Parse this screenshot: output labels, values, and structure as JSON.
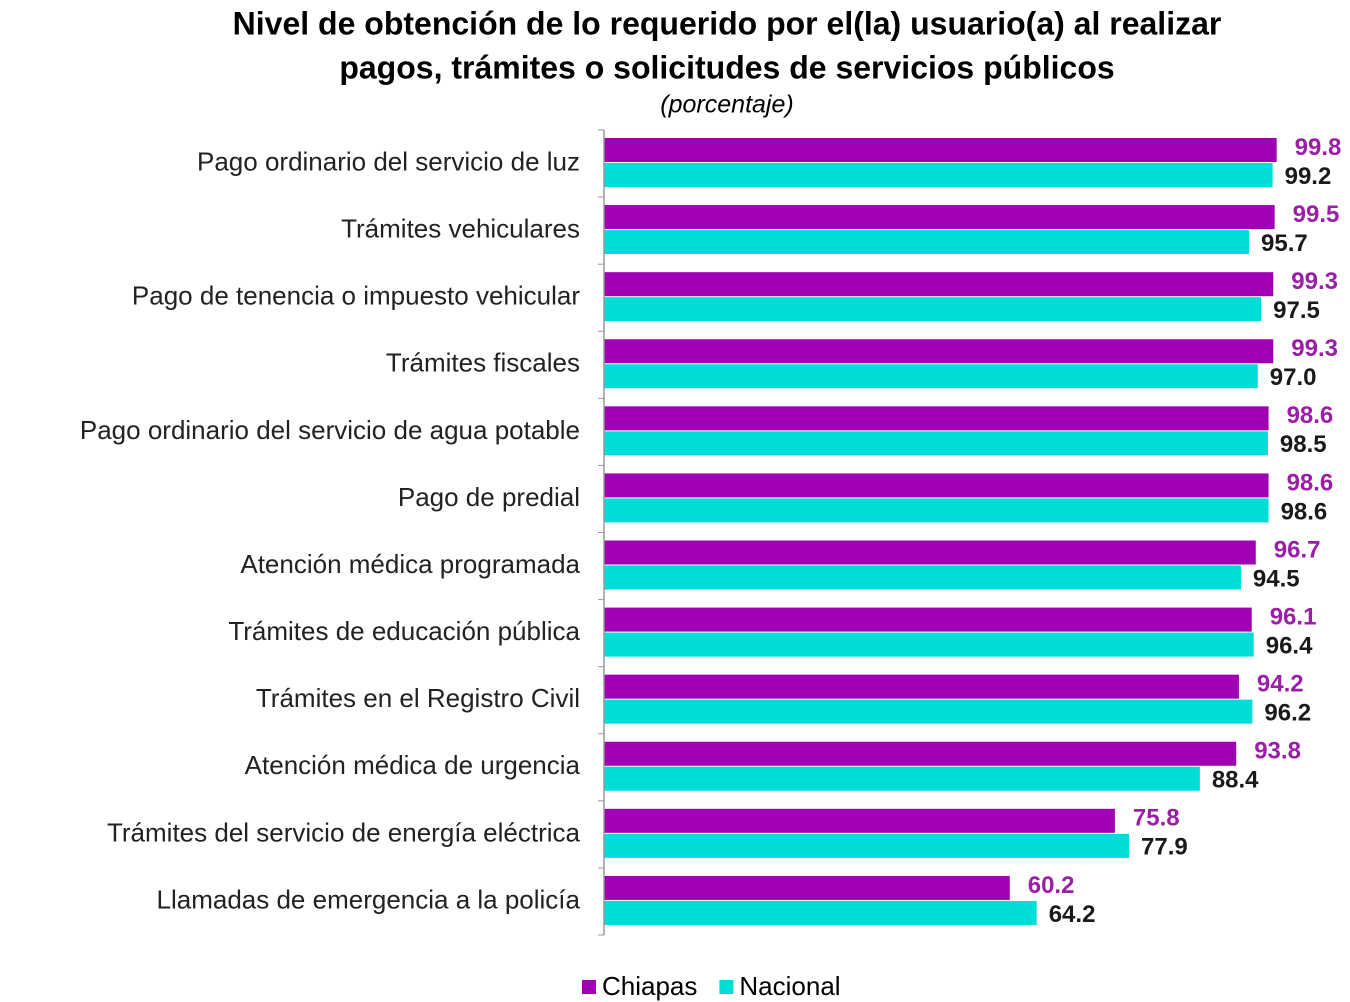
{
  "chart_data": {
    "type": "hbar",
    "title": [
      "Nivel de obtención de lo requerido por el(la) usuario(a) al realizar",
      "pagos, trámites o solicitudes de servicios públicos"
    ],
    "subtitle": "(porcentaje)",
    "categories": [
      "Pago ordinario del servicio de luz",
      "Trámites vehiculares",
      "Pago de tenencia o impuesto vehicular",
      "Trámites fiscales",
      "Pago ordinario del servicio de agua potable",
      "Pago de predial",
      "Atención médica programada",
      "Trámites de educación pública",
      "Trámites en el Registro Civil",
      "Atención médica de urgencia",
      "Trámites del servicio de energía eléctrica",
      "Llamadas de emergencia a la policía"
    ],
    "series": [
      {
        "name": "Chiapas",
        "color": "#a000b4",
        "label_color": "#9a1fa6",
        "values": [
          99.8,
          99.5,
          99.3,
          99.3,
          98.6,
          98.6,
          96.7,
          96.1,
          94.2,
          93.8,
          75.8,
          60.2
        ],
        "value_labels": [
          "99.8",
          "99.5",
          "99.3",
          "99.3",
          "98.6",
          "98.6",
          "96.7",
          "96.1",
          "94.2",
          "93.8",
          "75.8",
          "60.2"
        ]
      },
      {
        "name": "Nacional",
        "color": "#00dcd8",
        "label_color": "#1a1a1a",
        "values": [
          99.2,
          95.7,
          97.5,
          97.0,
          98.5,
          98.6,
          94.5,
          96.4,
          96.2,
          88.4,
          77.9,
          64.2
        ],
        "value_labels": [
          "99.2",
          "95.7",
          "97.5",
          "97.0",
          "98.5",
          "98.6",
          "94.5",
          "96.4",
          "96.2",
          "88.4",
          "77.9",
          "64.2"
        ]
      }
    ],
    "xlim": [
      0,
      100
    ],
    "legend": "bottom"
  }
}
